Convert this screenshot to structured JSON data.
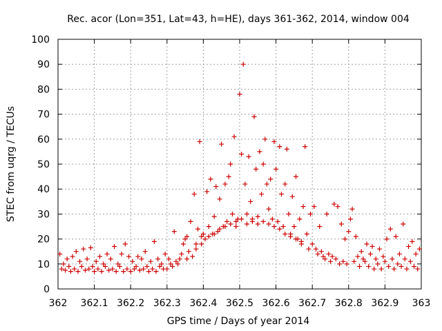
{
  "chart_data": {
    "type": "scatter",
    "title": "Rec. acor (Lon=351, Lat=43, h=HE), days 361-362, 2014, window 004",
    "xlabel": "GPS time / Days of year 2014",
    "ylabel": "STEC from uqrg / TECUs",
    "xlim": [
      362,
      363
    ],
    "ylim": [
      0,
      100
    ],
    "grid": true,
    "marker": "plus",
    "marker_color": "#cc0000",
    "x_ticks": [
      {
        "value": 362.0,
        "label": "362"
      },
      {
        "value": 362.1,
        "label": "362.1"
      },
      {
        "value": 362.2,
        "label": "362.2"
      },
      {
        "value": 362.3,
        "label": "362.3"
      },
      {
        "value": 362.4,
        "label": "362.4"
      },
      {
        "value": 362.5,
        "label": "362.5"
      },
      {
        "value": 362.6,
        "label": "362.6"
      },
      {
        "value": 362.7,
        "label": "362.7"
      },
      {
        "value": 362.8,
        "label": "362.8"
      },
      {
        "value": 362.9,
        "label": "362.9"
      },
      {
        "value": 363.0,
        "label": "363"
      }
    ],
    "y_ticks": [
      {
        "value": 0,
        "label": "0"
      },
      {
        "value": 10,
        "label": "10"
      },
      {
        "value": 20,
        "label": "20"
      },
      {
        "value": 30,
        "label": "30"
      },
      {
        "value": 40,
        "label": "40"
      },
      {
        "value": 50,
        "label": "50"
      },
      {
        "value": 60,
        "label": "60"
      },
      {
        "value": 70,
        "label": "70"
      },
      {
        "value": 80,
        "label": "80"
      },
      {
        "value": 90,
        "label": "90"
      },
      {
        "value": 100,
        "label": "100"
      }
    ],
    "series": [
      {
        "name": "STEC",
        "points": [
          [
            362.005,
            14
          ],
          [
            362.01,
            8
          ],
          [
            362.015,
            10
          ],
          [
            362.02,
            7.5
          ],
          [
            362.025,
            12
          ],
          [
            362.03,
            9
          ],
          [
            362.035,
            7
          ],
          [
            362.04,
            13
          ],
          [
            362.045,
            8
          ],
          [
            362.05,
            15
          ],
          [
            362.055,
            7
          ],
          [
            362.06,
            11
          ],
          [
            362.065,
            9
          ],
          [
            362.07,
            16
          ],
          [
            362.075,
            7.5
          ],
          [
            362.08,
            12
          ],
          [
            362.085,
            8
          ],
          [
            362.09,
            16.5
          ],
          [
            362.095,
            9
          ],
          [
            362.1,
            7
          ],
          [
            362.105,
            11
          ],
          [
            362.11,
            8
          ],
          [
            362.115,
            13
          ],
          [
            362.12,
            7
          ],
          [
            362.125,
            10
          ],
          [
            362.13,
            9
          ],
          [
            362.135,
            14
          ],
          [
            362.14,
            7.5
          ],
          [
            362.145,
            12
          ],
          [
            362.15,
            8
          ],
          [
            362.155,
            17
          ],
          [
            362.16,
            7
          ],
          [
            362.165,
            10
          ],
          [
            362.17,
            9
          ],
          [
            362.175,
            14
          ],
          [
            362.18,
            7
          ],
          [
            362.185,
            18
          ],
          [
            362.19,
            8
          ],
          [
            362.195,
            13
          ],
          [
            362.2,
            7
          ],
          [
            362.205,
            11
          ],
          [
            362.21,
            8
          ],
          [
            362.215,
            9
          ],
          [
            362.22,
            13
          ],
          [
            362.225,
            7.5
          ],
          [
            362.23,
            12
          ],
          [
            362.235,
            8
          ],
          [
            362.24,
            15
          ],
          [
            362.245,
            9
          ],
          [
            362.25,
            7
          ],
          [
            362.255,
            11
          ],
          [
            362.26,
            8
          ],
          [
            362.265,
            19
          ],
          [
            362.27,
            7
          ],
          [
            362.275,
            12
          ],
          [
            362.28,
            9
          ],
          [
            362.285,
            10
          ],
          [
            362.29,
            8
          ],
          [
            362.295,
            14
          ],
          [
            362.3,
            8
          ],
          [
            362.305,
            12
          ],
          [
            362.31,
            10
          ],
          [
            362.315,
            9
          ],
          [
            362.32,
            23
          ],
          [
            362.325,
            11
          ],
          [
            362.33,
            10
          ],
          [
            362.335,
            12
          ],
          [
            362.34,
            14
          ],
          [
            362.345,
            18
          ],
          [
            362.35,
            20
          ],
          [
            362.355,
            12
          ],
          [
            362.36,
            15
          ],
          [
            362.365,
            27
          ],
          [
            362.37,
            13
          ],
          [
            362.375,
            38
          ],
          [
            362.38,
            16
          ],
          [
            362.385,
            24
          ],
          [
            362.39,
            59
          ],
          [
            362.395,
            18
          ],
          [
            362.4,
            22
          ],
          [
            362.405,
            20
          ],
          [
            362.41,
            39
          ],
          [
            362.415,
            25
          ],
          [
            362.42,
            44
          ],
          [
            362.425,
            22
          ],
          [
            362.43,
            29
          ],
          [
            362.435,
            41
          ],
          [
            362.44,
            23
          ],
          [
            362.445,
            36
          ],
          [
            362.45,
            58
          ],
          [
            362.455,
            25
          ],
          [
            362.46,
            42
          ],
          [
            362.465,
            27
          ],
          [
            362.47,
            45
          ],
          [
            362.475,
            50
          ],
          [
            362.48,
            30
          ],
          [
            362.485,
            61
          ],
          [
            362.49,
            25
          ],
          [
            362.495,
            28
          ],
          [
            362.5,
            78
          ],
          [
            362.505,
            54
          ],
          [
            362.51,
            90
          ],
          [
            362.515,
            42
          ],
          [
            362.52,
            30
          ],
          [
            362.525,
            53
          ],
          [
            362.53,
            35
          ],
          [
            362.535,
            27
          ],
          [
            362.54,
            69
          ],
          [
            362.545,
            48
          ],
          [
            362.55,
            29
          ],
          [
            362.555,
            55
          ],
          [
            362.56,
            38
          ],
          [
            362.565,
            50
          ],
          [
            362.57,
            60
          ],
          [
            362.575,
            42
          ],
          [
            362.58,
            32
          ],
          [
            362.585,
            44
          ],
          [
            362.59,
            28
          ],
          [
            362.595,
            59
          ],
          [
            362.6,
            48
          ],
          [
            362.605,
            27
          ],
          [
            362.61,
            57
          ],
          [
            362.615,
            38
          ],
          [
            362.62,
            25
          ],
          [
            362.625,
            42
          ],
          [
            362.63,
            56
          ],
          [
            362.635,
            30
          ],
          [
            362.64,
            22
          ],
          [
            362.645,
            37
          ],
          [
            362.65,
            25
          ],
          [
            362.655,
            45
          ],
          [
            362.66,
            20
          ],
          [
            362.665,
            28
          ],
          [
            362.67,
            19
          ],
          [
            362.675,
            33
          ],
          [
            362.68,
            57
          ],
          [
            362.685,
            22
          ],
          [
            362.69,
            16
          ],
          [
            362.695,
            30
          ],
          [
            362.7,
            18
          ],
          [
            362.705,
            33
          ],
          [
            362.71,
            16
          ],
          [
            362.715,
            14
          ],
          [
            362.72,
            25
          ],
          [
            362.725,
            15
          ],
          [
            362.73,
            13
          ],
          [
            362.735,
            12
          ],
          [
            362.74,
            30
          ],
          [
            362.745,
            14
          ],
          [
            362.75,
            11
          ],
          [
            362.755,
            13
          ],
          [
            362.76,
            34
          ],
          [
            362.765,
            12
          ],
          [
            362.77,
            33
          ],
          [
            362.775,
            10
          ],
          [
            362.78,
            26
          ],
          [
            362.785,
            11
          ],
          [
            362.79,
            20
          ],
          [
            362.795,
            10
          ],
          [
            362.8,
            23
          ],
          [
            362.805,
            28
          ],
          [
            362.81,
            32
          ],
          [
            362.815,
            11
          ],
          [
            362.82,
            21
          ],
          [
            362.825,
            13
          ],
          [
            362.83,
            9
          ],
          [
            362.835,
            15
          ],
          [
            362.84,
            12
          ],
          [
            362.845,
            11
          ],
          [
            362.85,
            18
          ],
          [
            362.855,
            9
          ],
          [
            362.86,
            14
          ],
          [
            362.865,
            17
          ],
          [
            362.87,
            8
          ],
          [
            362.875,
            12
          ],
          [
            362.88,
            10
          ],
          [
            362.885,
            16
          ],
          [
            362.89,
            8
          ],
          [
            362.895,
            13
          ],
          [
            362.9,
            11
          ],
          [
            362.905,
            20
          ],
          [
            362.91,
            9
          ],
          [
            362.915,
            24
          ],
          [
            362.92,
            12
          ],
          [
            362.925,
            8
          ],
          [
            362.93,
            21
          ],
          [
            362.935,
            10
          ],
          [
            362.94,
            14
          ],
          [
            362.945,
            9
          ],
          [
            362.95,
            26
          ],
          [
            362.955,
            12
          ],
          [
            362.96,
            8
          ],
          [
            362.965,
            17
          ],
          [
            362.97,
            11
          ],
          [
            362.975,
            19
          ],
          [
            362.98,
            9
          ],
          [
            362.985,
            14
          ],
          [
            362.99,
            8
          ],
          [
            362.995,
            16
          ],
          [
            362.355,
            21
          ],
          [
            362.38,
            18
          ],
          [
            362.395,
            21
          ],
          [
            362.415,
            21
          ],
          [
            362.43,
            22
          ],
          [
            362.445,
            24
          ],
          [
            362.46,
            25
          ],
          [
            362.475,
            26
          ],
          [
            362.49,
            27
          ],
          [
            362.505,
            28
          ],
          [
            362.52,
            26
          ],
          [
            362.535,
            28
          ],
          [
            362.55,
            26
          ],
          [
            362.565,
            27
          ],
          [
            362.58,
            26
          ],
          [
            362.595,
            25
          ],
          [
            362.61,
            24
          ],
          [
            362.625,
            22
          ],
          [
            362.64,
            21
          ],
          [
            362.655,
            20
          ],
          [
            362.67,
            18
          ]
        ]
      }
    ]
  }
}
